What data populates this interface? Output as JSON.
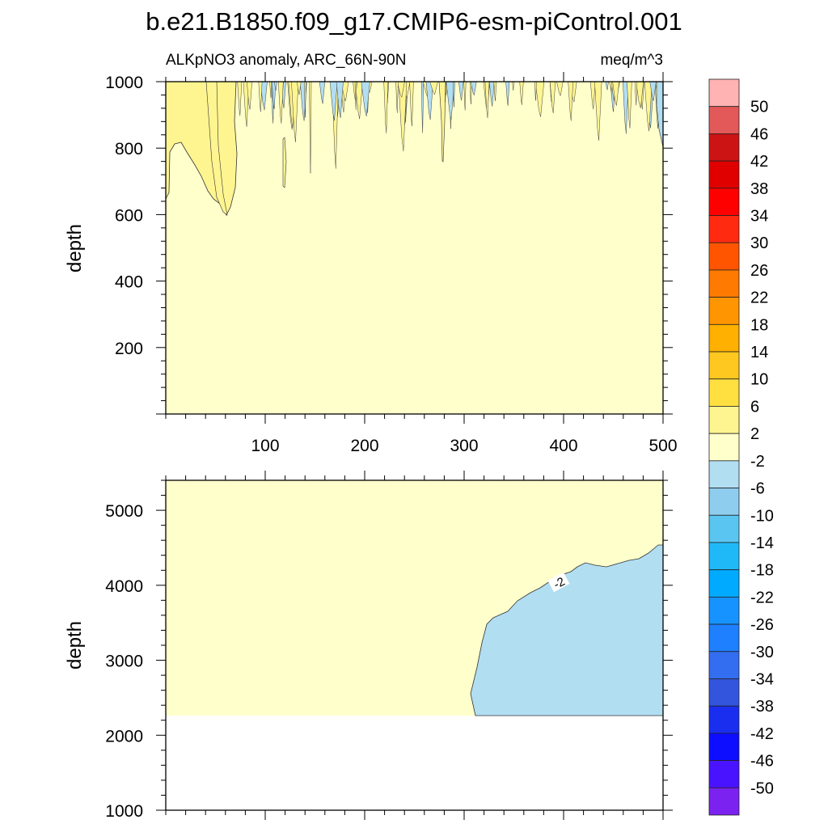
{
  "figure": {
    "title": "b.e21.B1850.f09_g17.CMIP6-esm-piControl.001",
    "left_label": "ALKpNO3 anomaly, ARC_66N-90N",
    "right_label": "meq/m^3"
  },
  "chart_data": [
    {
      "type": "contour",
      "panel": "upper",
      "ylabel": "depth",
      "xlim": [
        0,
        500
      ],
      "ylim": [
        1000,
        0
      ],
      "x_ticks": [
        "100",
        "200",
        "300",
        "400",
        "500"
      ],
      "y_ticks": [
        "200",
        "400",
        "600",
        "800",
        "1000"
      ],
      "contour_labels": []
    },
    {
      "type": "contour",
      "panel": "lower",
      "ylabel": "depth",
      "xlim": [
        0,
        500
      ],
      "ylim": [
        5400,
        1000
      ],
      "x_ticks": [],
      "y_ticks": [
        "1000",
        "2000",
        "3000",
        "4000",
        "5000"
      ],
      "contour_labels": [
        "-2"
      ]
    }
  ],
  "colorbar": {
    "labels": [
      "50",
      "46",
      "42",
      "38",
      "34",
      "30",
      "26",
      "22",
      "18",
      "14",
      "10",
      "6",
      "2",
      "-2",
      "-6",
      "-10",
      "-14",
      "-18",
      "-22",
      "-26",
      "-30",
      "-34",
      "-38",
      "-42",
      "-46",
      "-50"
    ],
    "colors": [
      "#ffb3b3",
      "#e35858",
      "#cc1414",
      "#e00000",
      "#ff0000",
      "#ff2a10",
      "#ff5500",
      "#ff7a00",
      "#ff9500",
      "#ffb000",
      "#ffc820",
      "#ffe040",
      "#fff590",
      "#ffffcc",
      "#b2def2",
      "#8fcdee",
      "#5ac5f0",
      "#20b9f8",
      "#00aaff",
      "#1793ff",
      "#1e80ff",
      "#336df0",
      "#3355dd",
      "#1a2ef0",
      "#0d0dff",
      "#4a13ff",
      "#7b21f0"
    ]
  },
  "fill_colors": {
    "near_zero": "#ffffcc",
    "positive": "#fff590",
    "negative": "#b2def2"
  }
}
